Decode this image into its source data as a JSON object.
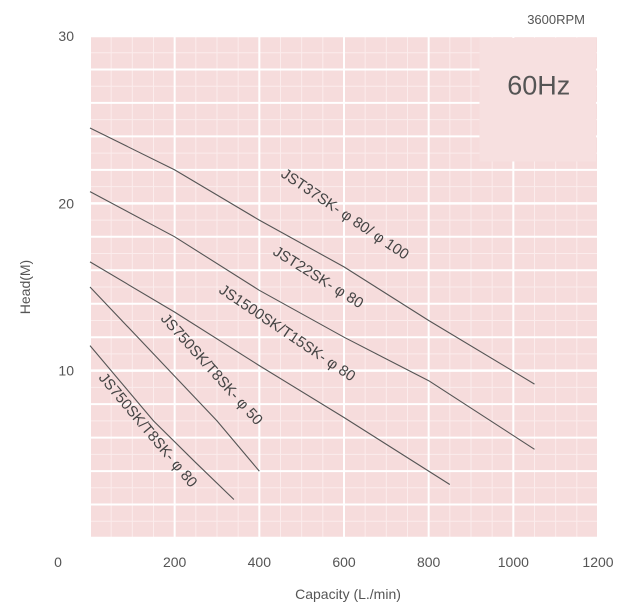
{
  "chart_data": {
    "type": "line",
    "title": "",
    "speed_label": "3600RPM",
    "frequency_label": "60Hz",
    "xlabel": "Capacity (L./min)",
    "ylabel": "Head(M)",
    "xlim": [
      0,
      1200
    ],
    "ylim": [
      0,
      30
    ],
    "x_ticks": [
      "0",
      "200",
      "400",
      "600",
      "800",
      "1000",
      "1200"
    ],
    "y_ticks": [
      "0",
      "10",
      "20",
      "30"
    ],
    "grid": true,
    "colors": {
      "plot_bg": "#f6dcdc",
      "grid_major": "#ffffff",
      "grid_minor": "#fbecec",
      "curve": "#555555",
      "box": "#f7e0e0"
    },
    "series": [
      {
        "name": "JST37SK- φ 80/ φ 100",
        "x": [
          0,
          200,
          400,
          600,
          800,
          1050
        ],
        "y": [
          24.5,
          22,
          19,
          16.2,
          13,
          9.2
        ]
      },
      {
        "name": "JST22SK- φ 80",
        "x": [
          0,
          200,
          400,
          600,
          800,
          1050
        ],
        "y": [
          20.7,
          18,
          14.8,
          12,
          9.4,
          5.3
        ]
      },
      {
        "name": "JS1500SK/T15SK- φ 80",
        "x": [
          0,
          200,
          400,
          600,
          850
        ],
        "y": [
          16.5,
          13.5,
          10.3,
          7.2,
          3.2
        ]
      },
      {
        "name": "JS750SK/T8SK- φ 50",
        "x": [
          0,
          150,
          300,
          400
        ],
        "y": [
          15,
          11,
          7,
          4
        ]
      },
      {
        "name": "JS750SK/T8SK- φ 80",
        "x": [
          0,
          150,
          250,
          340
        ],
        "y": [
          11.5,
          7,
          4.5,
          2.3
        ]
      }
    ]
  }
}
